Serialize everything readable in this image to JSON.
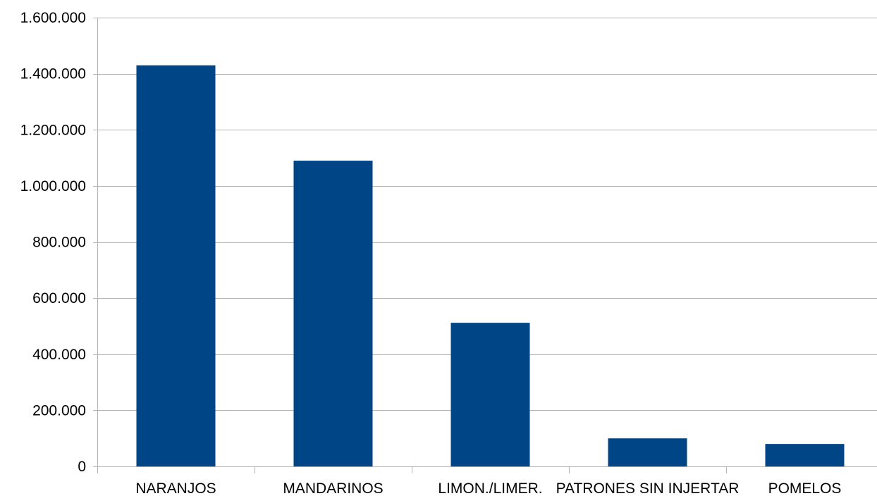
{
  "chart_data": {
    "type": "bar",
    "categories": [
      "NARANJOS",
      "MANDARINOS",
      "LIMON./LIMER.",
      "PATRONES SIN INJERTAR",
      "POMELOS"
    ],
    "values": [
      1430000,
      1090000,
      512000,
      100000,
      80000
    ],
    "ylim": [
      0,
      1600000
    ],
    "yticks": [
      0,
      200000,
      400000,
      600000,
      800000,
      1000000,
      1200000,
      1400000,
      1600000
    ],
    "ytick_labels": [
      "0",
      "200.000",
      "400.000",
      "600.000",
      "800.000",
      "1.000.000",
      "1.200.000",
      "1.400.000",
      "1.600.000"
    ],
    "grid": true,
    "legend": false,
    "bar_color": "#004586",
    "grid_color": "#b3b3b3",
    "axis_color": "#b3b3b3"
  }
}
